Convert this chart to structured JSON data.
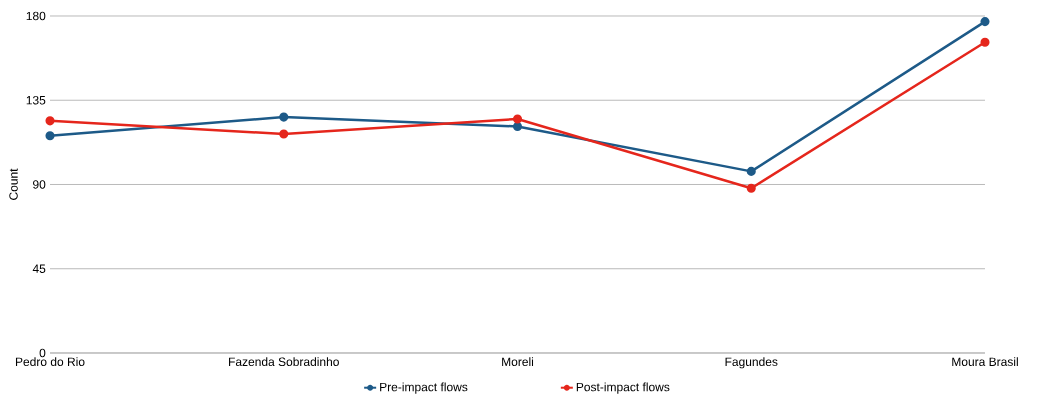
{
  "chart_data": {
    "type": "line",
    "ylabel": "Count",
    "categories": [
      "Pedro do Rio",
      "Fazenda Sobradinho",
      "Moreli",
      "Fagundes",
      "Moura Brasil"
    ],
    "series": [
      {
        "name": "Pre-impact flows",
        "color": "#1d5a88",
        "values": [
          116,
          126,
          121,
          97,
          177
        ]
      },
      {
        "name": "Post-impact flows",
        "color": "#e5261c",
        "values": [
          124,
          117,
          125,
          88,
          166
        ]
      }
    ],
    "ylim": [
      0,
      180
    ],
    "yticks": [
      0,
      45,
      90,
      135,
      180
    ],
    "grid": "y",
    "legend": "bottom",
    "marker": "circle",
    "line_style": "solid"
  }
}
